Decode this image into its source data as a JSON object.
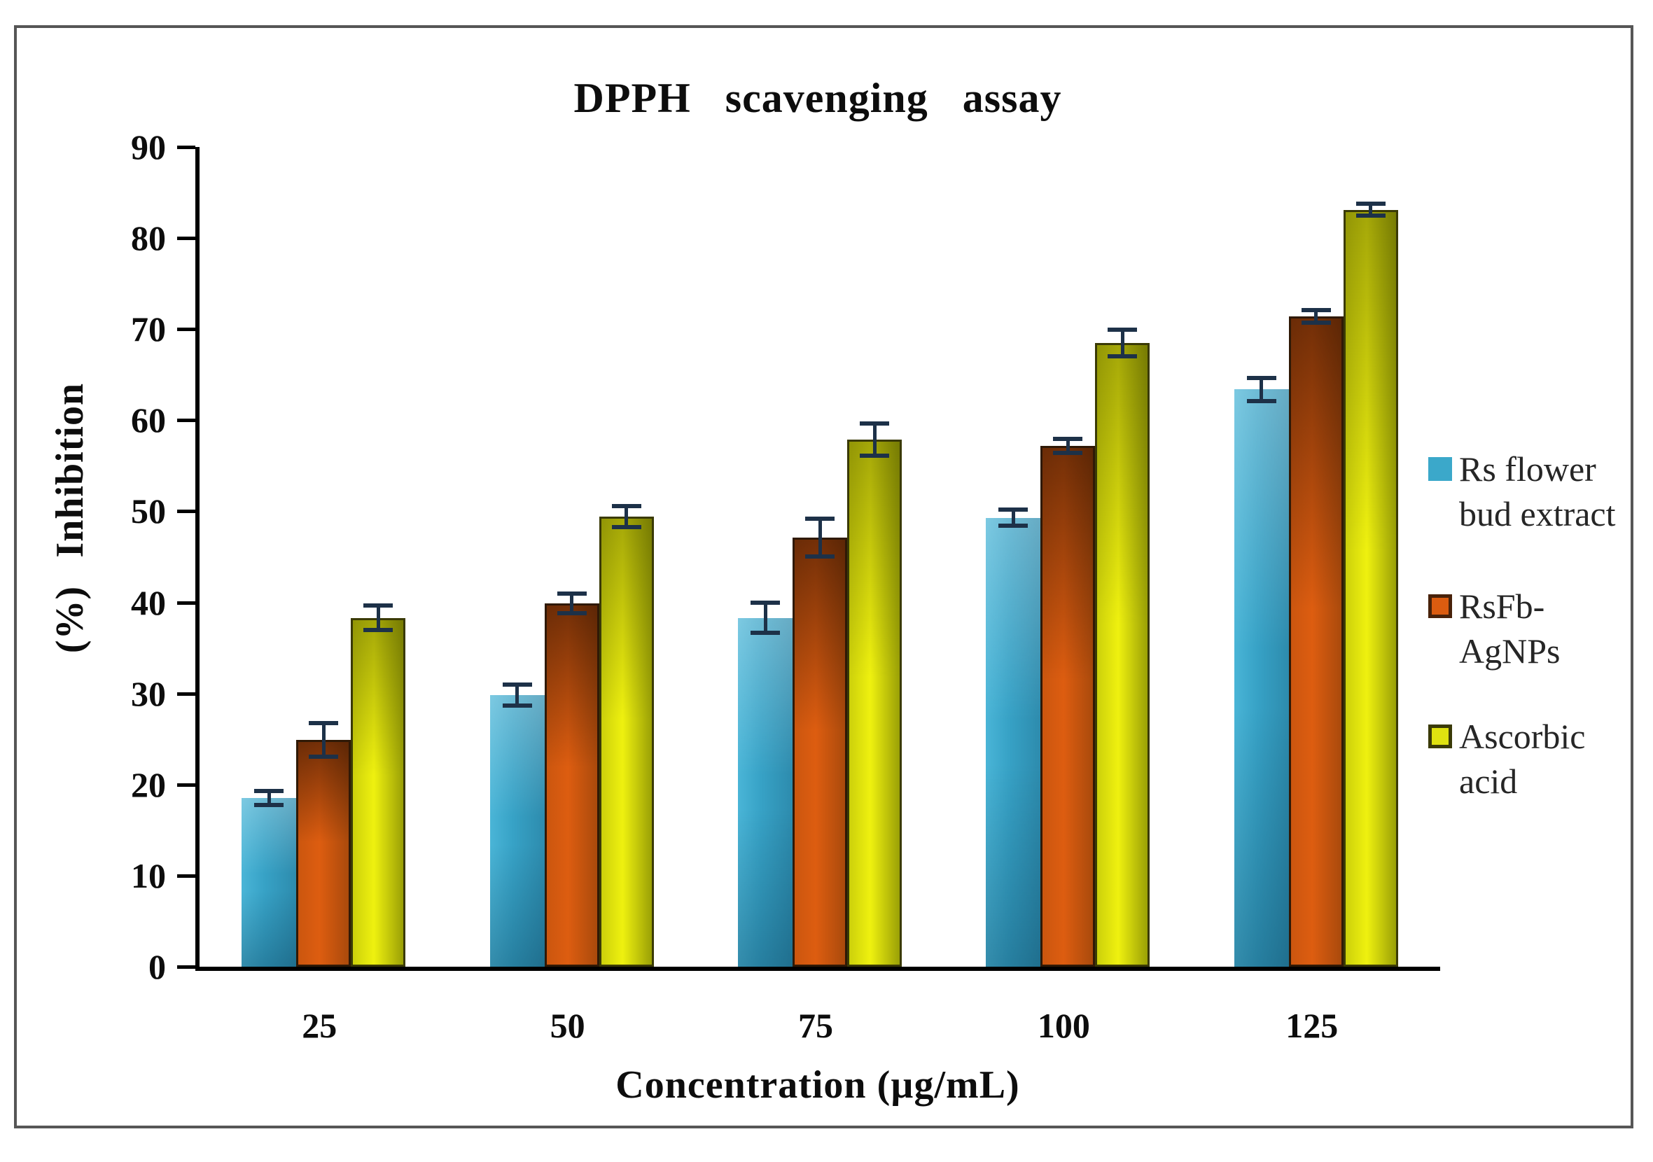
{
  "figure": {
    "title": "DPPH scavenging assay"
  },
  "axes": {
    "y_label": "(%) Inhibition",
    "x_label": "Concentration (µg/mL)"
  },
  "legend": {
    "entries": [
      {
        "series": "Rs flower bud extract",
        "lines": [
          "Rs flower",
          "bud extract"
        ]
      },
      {
        "series": "RsFb-AgNPs",
        "lines": [
          "RsFb-",
          "AgNPs"
        ]
      },
      {
        "series": "Ascorbic acid",
        "lines": [
          "Ascorbic",
          "acid"
        ]
      }
    ]
  },
  "chart_data": {
    "type": "bar",
    "title": "DPPH scavenging assay",
    "xlabel": "Concentration (µg/mL)",
    "ylabel": "(%) Inhibition",
    "ylim": [
      0,
      90
    ],
    "ytick_step": 10,
    "grid": false,
    "legend_position": "right",
    "error_color": "#1d3148",
    "categories": [
      25,
      50,
      75,
      100,
      125
    ],
    "series": [
      {
        "name": "Rs flower bud extract",
        "values": [
          18.5,
          29.8,
          38.3,
          49.3,
          63.4
        ],
        "errors": [
          1.0,
          1.4,
          1.9,
          1.1,
          1.5
        ],
        "color": "#37a2c6",
        "color_light": "#4ab5d7",
        "color_dark": "#2d8bad",
        "shade_top": "rgba(255,255,255,0.28)",
        "shade_bottom": "rgba(0,45,70,0.30)",
        "border_color": "",
        "legend_fill": "#3ba8ca",
        "legend_border": ""
      },
      {
        "name": "RsFb-AgNPs",
        "values": [
          24.9,
          39.9,
          47.1,
          57.2,
          71.4
        ],
        "errors": [
          2.1,
          1.3,
          2.3,
          1.0,
          0.9
        ],
        "color": "#dd5d10",
        "color_light": "#cb560f",
        "color_dark": "#aa4a0c",
        "shade_top": "rgba(28,9,0,0.55)",
        "shade_bottom": "rgba(0,0,0,0)",
        "border_color": "#2f1906",
        "legend_fill": "#db5c10",
        "legend_border": "#48220a"
      },
      {
        "name": "Ascorbic acid",
        "values": [
          38.3,
          49.4,
          57.9,
          68.5,
          83.1
        ],
        "errors": [
          1.6,
          1.4,
          2.0,
          1.7,
          0.9
        ],
        "color": "#eff10f",
        "color_light": "#ccd00b",
        "color_dark": "#9aa006",
        "shade_top": "rgba(75,78,0,0.45)",
        "shade_bottom": "rgba(0,0,0,0)",
        "border_color": "#3a3a06",
        "legend_fill": "#dfe210",
        "legend_border": "#3a3a08"
      }
    ]
  }
}
